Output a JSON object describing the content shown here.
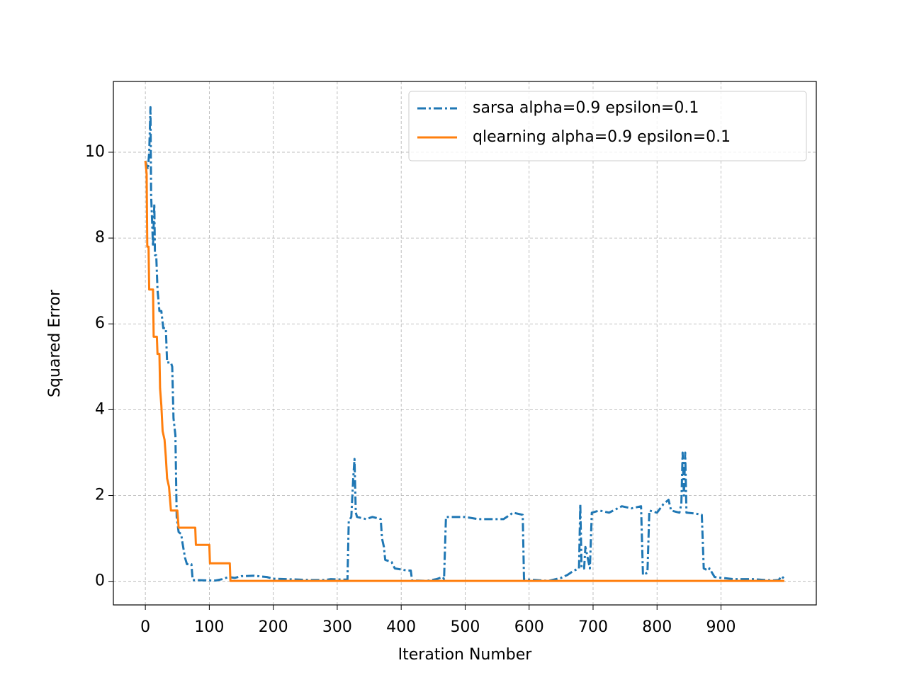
{
  "chart_data": {
    "type": "line",
    "xlabel": "Iteration Number",
    "ylabel": "Squared Error",
    "xlim": [
      -50,
      1049
    ],
    "ylim": [
      -0.55,
      11.65
    ],
    "xticks": [
      0,
      100,
      200,
      300,
      400,
      500,
      600,
      700,
      800,
      900
    ],
    "yticks": [
      0,
      2,
      4,
      6,
      8,
      10
    ],
    "grid": true,
    "legend": "upper right",
    "series": [
      {
        "name": "sarsa alpha=0.9 epsilon=0.1",
        "color": "#1f77b4",
        "linestyle": "dashdot",
        "x": [
          0,
          4,
          6,
          8,
          9,
          10,
          12,
          14,
          15,
          17,
          19,
          22,
          25,
          28,
          32,
          34,
          40,
          42,
          44,
          47,
          49,
          52,
          56,
          58,
          62,
          65,
          72,
          74,
          100,
          110,
          120,
          130,
          140,
          150,
          170,
          190,
          200,
          220,
          240,
          260,
          280,
          290,
          310,
          316,
          318,
          322,
          325,
          327,
          329,
          331,
          345,
          355,
          368,
          370,
          373,
          375,
          385,
          390,
          410,
          415,
          417,
          440,
          455,
          465,
          467,
          470,
          490,
          500,
          520,
          540,
          560,
          575,
          590,
          592,
          610,
          630,
          650,
          660,
          670,
          678,
          680,
          682,
          686,
          688,
          695,
          698,
          710,
          725,
          745,
          760,
          775,
          778,
          785,
          788,
          800,
          810,
          818,
          822,
          835,
          838,
          840,
          842,
          844,
          846,
          860,
          870,
          873,
          880,
          882,
          890,
          920,
          950,
          980,
          990,
          995,
          999
        ],
        "values": [
          9.8,
          9.6,
          10.0,
          11.05,
          9.0,
          8.6,
          7.8,
          8.8,
          7.6,
          7.6,
          6.8,
          6.3,
          6.3,
          5.9,
          5.9,
          5.1,
          5.1,
          5.0,
          3.8,
          3.4,
          1.5,
          1.15,
          1.1,
          0.9,
          0.55,
          0.4,
          0.4,
          0.03,
          0.02,
          0.02,
          0.05,
          0.1,
          0.08,
          0.12,
          0.13,
          0.1,
          0.06,
          0.05,
          0.04,
          0.03,
          0.03,
          0.05,
          0.04,
          0.04,
          1.4,
          1.5,
          2.4,
          2.85,
          1.6,
          1.5,
          1.45,
          1.5,
          1.45,
          1.0,
          0.8,
          0.5,
          0.45,
          0.3,
          0.25,
          0.25,
          0.02,
          0.01,
          0.05,
          0.1,
          0.05,
          1.5,
          1.5,
          1.5,
          1.45,
          1.45,
          1.45,
          1.6,
          1.55,
          0.05,
          0.03,
          0.01,
          0.08,
          0.15,
          0.25,
          0.3,
          1.8,
          0.3,
          0.3,
          0.8,
          0.3,
          1.6,
          1.65,
          1.6,
          1.75,
          1.7,
          1.75,
          0.15,
          0.2,
          1.65,
          1.6,
          1.8,
          1.9,
          1.65,
          1.6,
          1.8,
          3.0,
          2.0,
          3.0,
          1.6,
          1.58,
          1.55,
          0.3,
          0.25,
          0.3,
          0.1,
          0.05,
          0.05,
          0.02,
          0.03,
          0.12,
          0.05
        ]
      },
      {
        "name": "qlearning alpha=0.9 epsilon=0.1",
        "color": "#ff7f0e",
        "linestyle": "solid",
        "x": [
          0,
          2,
          3,
          5,
          6,
          12,
          13,
          18,
          19,
          22,
          23,
          25,
          27,
          30,
          32,
          34,
          37,
          40,
          50,
          52,
          78,
          79,
          100,
          101,
          132,
          133,
          999
        ],
        "values": [
          9.8,
          9.5,
          7.8,
          7.8,
          6.8,
          6.8,
          5.7,
          5.7,
          5.3,
          5.3,
          4.5,
          4.1,
          3.5,
          3.3,
          2.9,
          2.4,
          2.2,
          1.65,
          1.65,
          1.25,
          1.25,
          0.85,
          0.85,
          0.42,
          0.42,
          0.01,
          0.01
        ]
      }
    ]
  }
}
